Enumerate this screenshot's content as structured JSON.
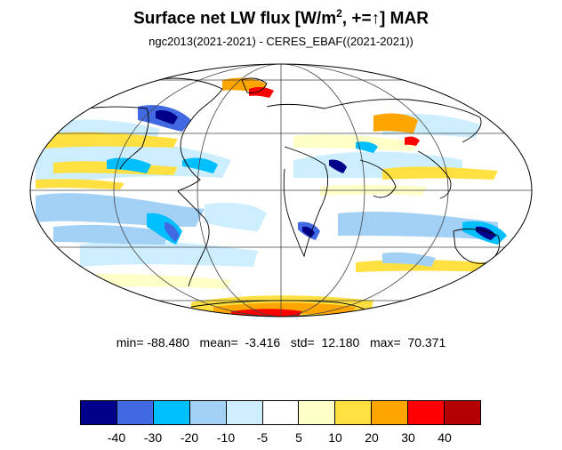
{
  "header": {
    "title_main": "Surface net LW flux [W/m",
    "title_sup": "2",
    "title_tail": ", +=↑]  MAR",
    "subtitle": "ngc2013(2021-2021) - CERES_EBAF((2021-2021))"
  },
  "stats": {
    "text": "min= -88.480   mean=  -3.416   std=  12.180   max=  70.371",
    "min": -88.48,
    "mean": -3.416,
    "std": 12.18,
    "max": 70.371
  },
  "colorbar": {
    "colors": [
      "#00008b",
      "#4169e1",
      "#00bfff",
      "#a3d0f5",
      "#cdeeff",
      "#ffffff",
      "#ffffc8",
      "#ffe040",
      "#ffa500",
      "#ff0000",
      "#b40000"
    ],
    "labels": [
      "-40",
      "-30",
      "-20",
      "-10",
      "-5",
      "5",
      "10",
      "20",
      "30",
      "40"
    ]
  },
  "map": {
    "projection": "mollweide",
    "graticule": true
  }
}
